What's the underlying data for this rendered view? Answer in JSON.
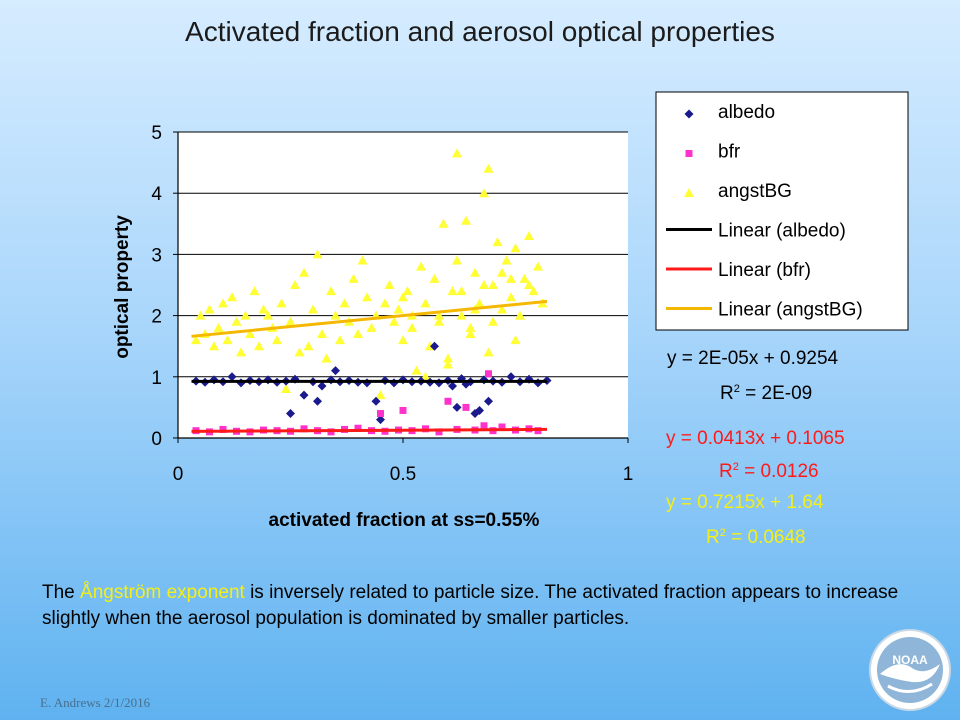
{
  "slide": {
    "title": "Activated fraction and aerosol optical properties",
    "caption_pre": "The ",
    "caption_highlight": "Ångström exponent",
    "caption_post": " is inversely related to particle size.  The activated fraction appears to increase slightly when the aerosol population is dominated by smaller particles.",
    "footer": "E. Andrews   2/1/2016",
    "logo_text": "NOAA"
  },
  "legend": {
    "items": [
      {
        "label": "albedo",
        "color": "#1a1a8c",
        "marker": "diamond"
      },
      {
        "label": "bfr",
        "color": "#ff33cc",
        "marker": "square"
      },
      {
        "label": "angstBG",
        "color": "#ffff33",
        "marker": "triangle"
      },
      {
        "label": "Linear (albedo)",
        "color": "#000000",
        "marker": "line"
      },
      {
        "label": "Linear (bfr)",
        "color": "#ff1a1a",
        "marker": "line"
      },
      {
        "label": "Linear (angstBG)",
        "color": "#f5b800",
        "marker": "line"
      }
    ]
  },
  "equations": {
    "albedo_eq": "y = 2E-05x + 0.9254",
    "albedo_r2_pre": "R",
    "albedo_r2_sup": "2",
    "albedo_r2_val": " = 2E-09",
    "bfr_eq": "y = 0.0413x + 0.1065",
    "bfr_r2_pre": "R",
    "bfr_r2_sup": "2",
    "bfr_r2_val": " = 0.0126",
    "angst_eq": "y = 0.7215x + 1.64",
    "angst_r2_pre": "R",
    "angst_r2_sup": "2",
    "angst_r2_val": " = 0.0648",
    "colors": {
      "albedo": "#000000",
      "bfr": "#ff1a1a",
      "angst": "#f4ef17"
    }
  },
  "chart_data": {
    "type": "scatter",
    "xlabel": "activated fraction at ss=0.55%",
    "ylabel": "optical property",
    "xlim": [
      0,
      1
    ],
    "ylim": [
      0,
      5
    ],
    "xticks": [
      0,
      0.5,
      1
    ],
    "xtick_labels": [
      "0",
      "0.5",
      "1"
    ],
    "yticks": [
      0,
      1,
      2,
      3,
      4,
      5
    ],
    "ytick_labels": [
      "0",
      "1",
      "2",
      "3",
      "4",
      "5"
    ],
    "grid": "horizontal",
    "legend_position": "top-right, outside plot",
    "series": [
      {
        "name": "albedo",
        "marker": "diamond",
        "color": "#1a1a8c",
        "x": [
          0.04,
          0.06,
          0.08,
          0.1,
          0.12,
          0.14,
          0.16,
          0.18,
          0.2,
          0.22,
          0.24,
          0.25,
          0.26,
          0.28,
          0.3,
          0.31,
          0.32,
          0.34,
          0.35,
          0.36,
          0.38,
          0.4,
          0.42,
          0.44,
          0.45,
          0.46,
          0.48,
          0.5,
          0.52,
          0.54,
          0.56,
          0.57,
          0.58,
          0.6,
          0.61,
          0.62,
          0.63,
          0.64,
          0.65,
          0.66,
          0.67,
          0.68,
          0.69,
          0.7,
          0.72,
          0.74,
          0.76,
          0.78,
          0.8,
          0.82
        ],
        "y": [
          0.93,
          0.91,
          0.95,
          0.92,
          1.0,
          0.9,
          0.94,
          0.92,
          0.95,
          0.91,
          0.93,
          0.4,
          0.96,
          0.7,
          0.92,
          0.6,
          0.85,
          0.95,
          1.1,
          0.92,
          0.94,
          0.91,
          0.9,
          0.6,
          0.3,
          0.94,
          0.9,
          0.95,
          0.92,
          0.93,
          0.91,
          1.5,
          0.9,
          0.94,
          0.85,
          0.5,
          0.97,
          0.88,
          0.92,
          0.4,
          0.45,
          0.95,
          0.6,
          0.93,
          0.91,
          1.0,
          0.92,
          0.96,
          0.9,
          0.94
        ]
      },
      {
        "name": "bfr",
        "marker": "square",
        "color": "#ff33cc",
        "x": [
          0.04,
          0.07,
          0.1,
          0.13,
          0.16,
          0.19,
          0.22,
          0.25,
          0.28,
          0.31,
          0.34,
          0.37,
          0.4,
          0.43,
          0.45,
          0.46,
          0.49,
          0.5,
          0.52,
          0.55,
          0.58,
          0.6,
          0.62,
          0.64,
          0.66,
          0.68,
          0.69,
          0.7,
          0.72,
          0.75,
          0.78,
          0.8
        ],
        "y": [
          0.12,
          0.1,
          0.14,
          0.11,
          0.1,
          0.13,
          0.12,
          0.11,
          0.15,
          0.12,
          0.1,
          0.14,
          0.16,
          0.12,
          0.4,
          0.11,
          0.13,
          0.45,
          0.12,
          0.15,
          0.1,
          0.6,
          0.14,
          0.5,
          0.13,
          0.2,
          1.05,
          0.12,
          0.18,
          0.13,
          0.15,
          0.12
        ]
      },
      {
        "name": "angstBG",
        "marker": "triangle",
        "color": "#ffff33",
        "x": [
          0.04,
          0.05,
          0.06,
          0.07,
          0.08,
          0.09,
          0.1,
          0.11,
          0.12,
          0.13,
          0.14,
          0.15,
          0.16,
          0.17,
          0.18,
          0.19,
          0.2,
          0.21,
          0.22,
          0.23,
          0.24,
          0.25,
          0.26,
          0.27,
          0.28,
          0.29,
          0.3,
          0.31,
          0.32,
          0.33,
          0.34,
          0.35,
          0.36,
          0.37,
          0.38,
          0.39,
          0.4,
          0.41,
          0.42,
          0.43,
          0.44,
          0.45,
          0.46,
          0.47,
          0.48,
          0.49,
          0.5,
          0.51,
          0.52,
          0.53,
          0.54,
          0.55,
          0.56,
          0.57,
          0.58,
          0.59,
          0.6,
          0.61,
          0.62,
          0.63,
          0.64,
          0.65,
          0.66,
          0.67,
          0.68,
          0.69,
          0.7,
          0.71,
          0.72,
          0.73,
          0.74,
          0.75,
          0.76,
          0.77,
          0.78,
          0.79,
          0.8,
          0.81,
          0.55,
          0.6,
          0.62,
          0.65,
          0.68,
          0.7,
          0.72,
          0.75,
          0.78,
          0.5,
          0.52,
          0.58,
          0.63,
          0.66,
          0.69,
          0.74,
          0.76
        ],
        "y": [
          1.6,
          2.0,
          1.7,
          2.1,
          1.5,
          1.8,
          2.2,
          1.6,
          2.3,
          1.9,
          1.4,
          2.0,
          1.7,
          2.4,
          1.5,
          2.1,
          2.0,
          1.8,
          1.6,
          2.2,
          0.8,
          1.9,
          2.5,
          1.4,
          2.7,
          1.5,
          2.1,
          3.0,
          1.7,
          1.3,
          2.4,
          2.0,
          1.6,
          2.2,
          1.9,
          2.6,
          1.7,
          2.9,
          2.3,
          1.8,
          2.0,
          0.7,
          2.2,
          2.5,
          1.9,
          2.1,
          1.6,
          2.4,
          2.0,
          1.1,
          2.8,
          2.2,
          1.5,
          2.6,
          1.9,
          3.5,
          1.3,
          2.4,
          4.65,
          2.0,
          3.55,
          1.8,
          2.7,
          2.2,
          4.0,
          4.4,
          2.5,
          3.2,
          2.1,
          2.9,
          2.3,
          3.1,
          2.0,
          2.6,
          3.3,
          2.4,
          2.8,
          2.2,
          1.0,
          1.2,
          2.9,
          1.7,
          2.5,
          1.9,
          2.7,
          1.6,
          2.5,
          2.3,
          1.8,
          2.0,
          2.4,
          2.1,
          1.4,
          2.6,
          2.0
        ]
      }
    ],
    "trendlines": [
      {
        "name": "Linear (albedo)",
        "slope": 2e-05,
        "intercept": 0.9254,
        "x_range": [
          0.03,
          0.82
        ],
        "color": "#000000"
      },
      {
        "name": "Linear (bfr)",
        "slope": 0.0413,
        "intercept": 0.1065,
        "x_range": [
          0.03,
          0.82
        ],
        "color": "#ff1a1a"
      },
      {
        "name": "Linear (angstBG)",
        "slope": 0.7215,
        "intercept": 1.64,
        "x_range": [
          0.03,
          0.82
        ],
        "color": "#f5b800"
      }
    ]
  }
}
